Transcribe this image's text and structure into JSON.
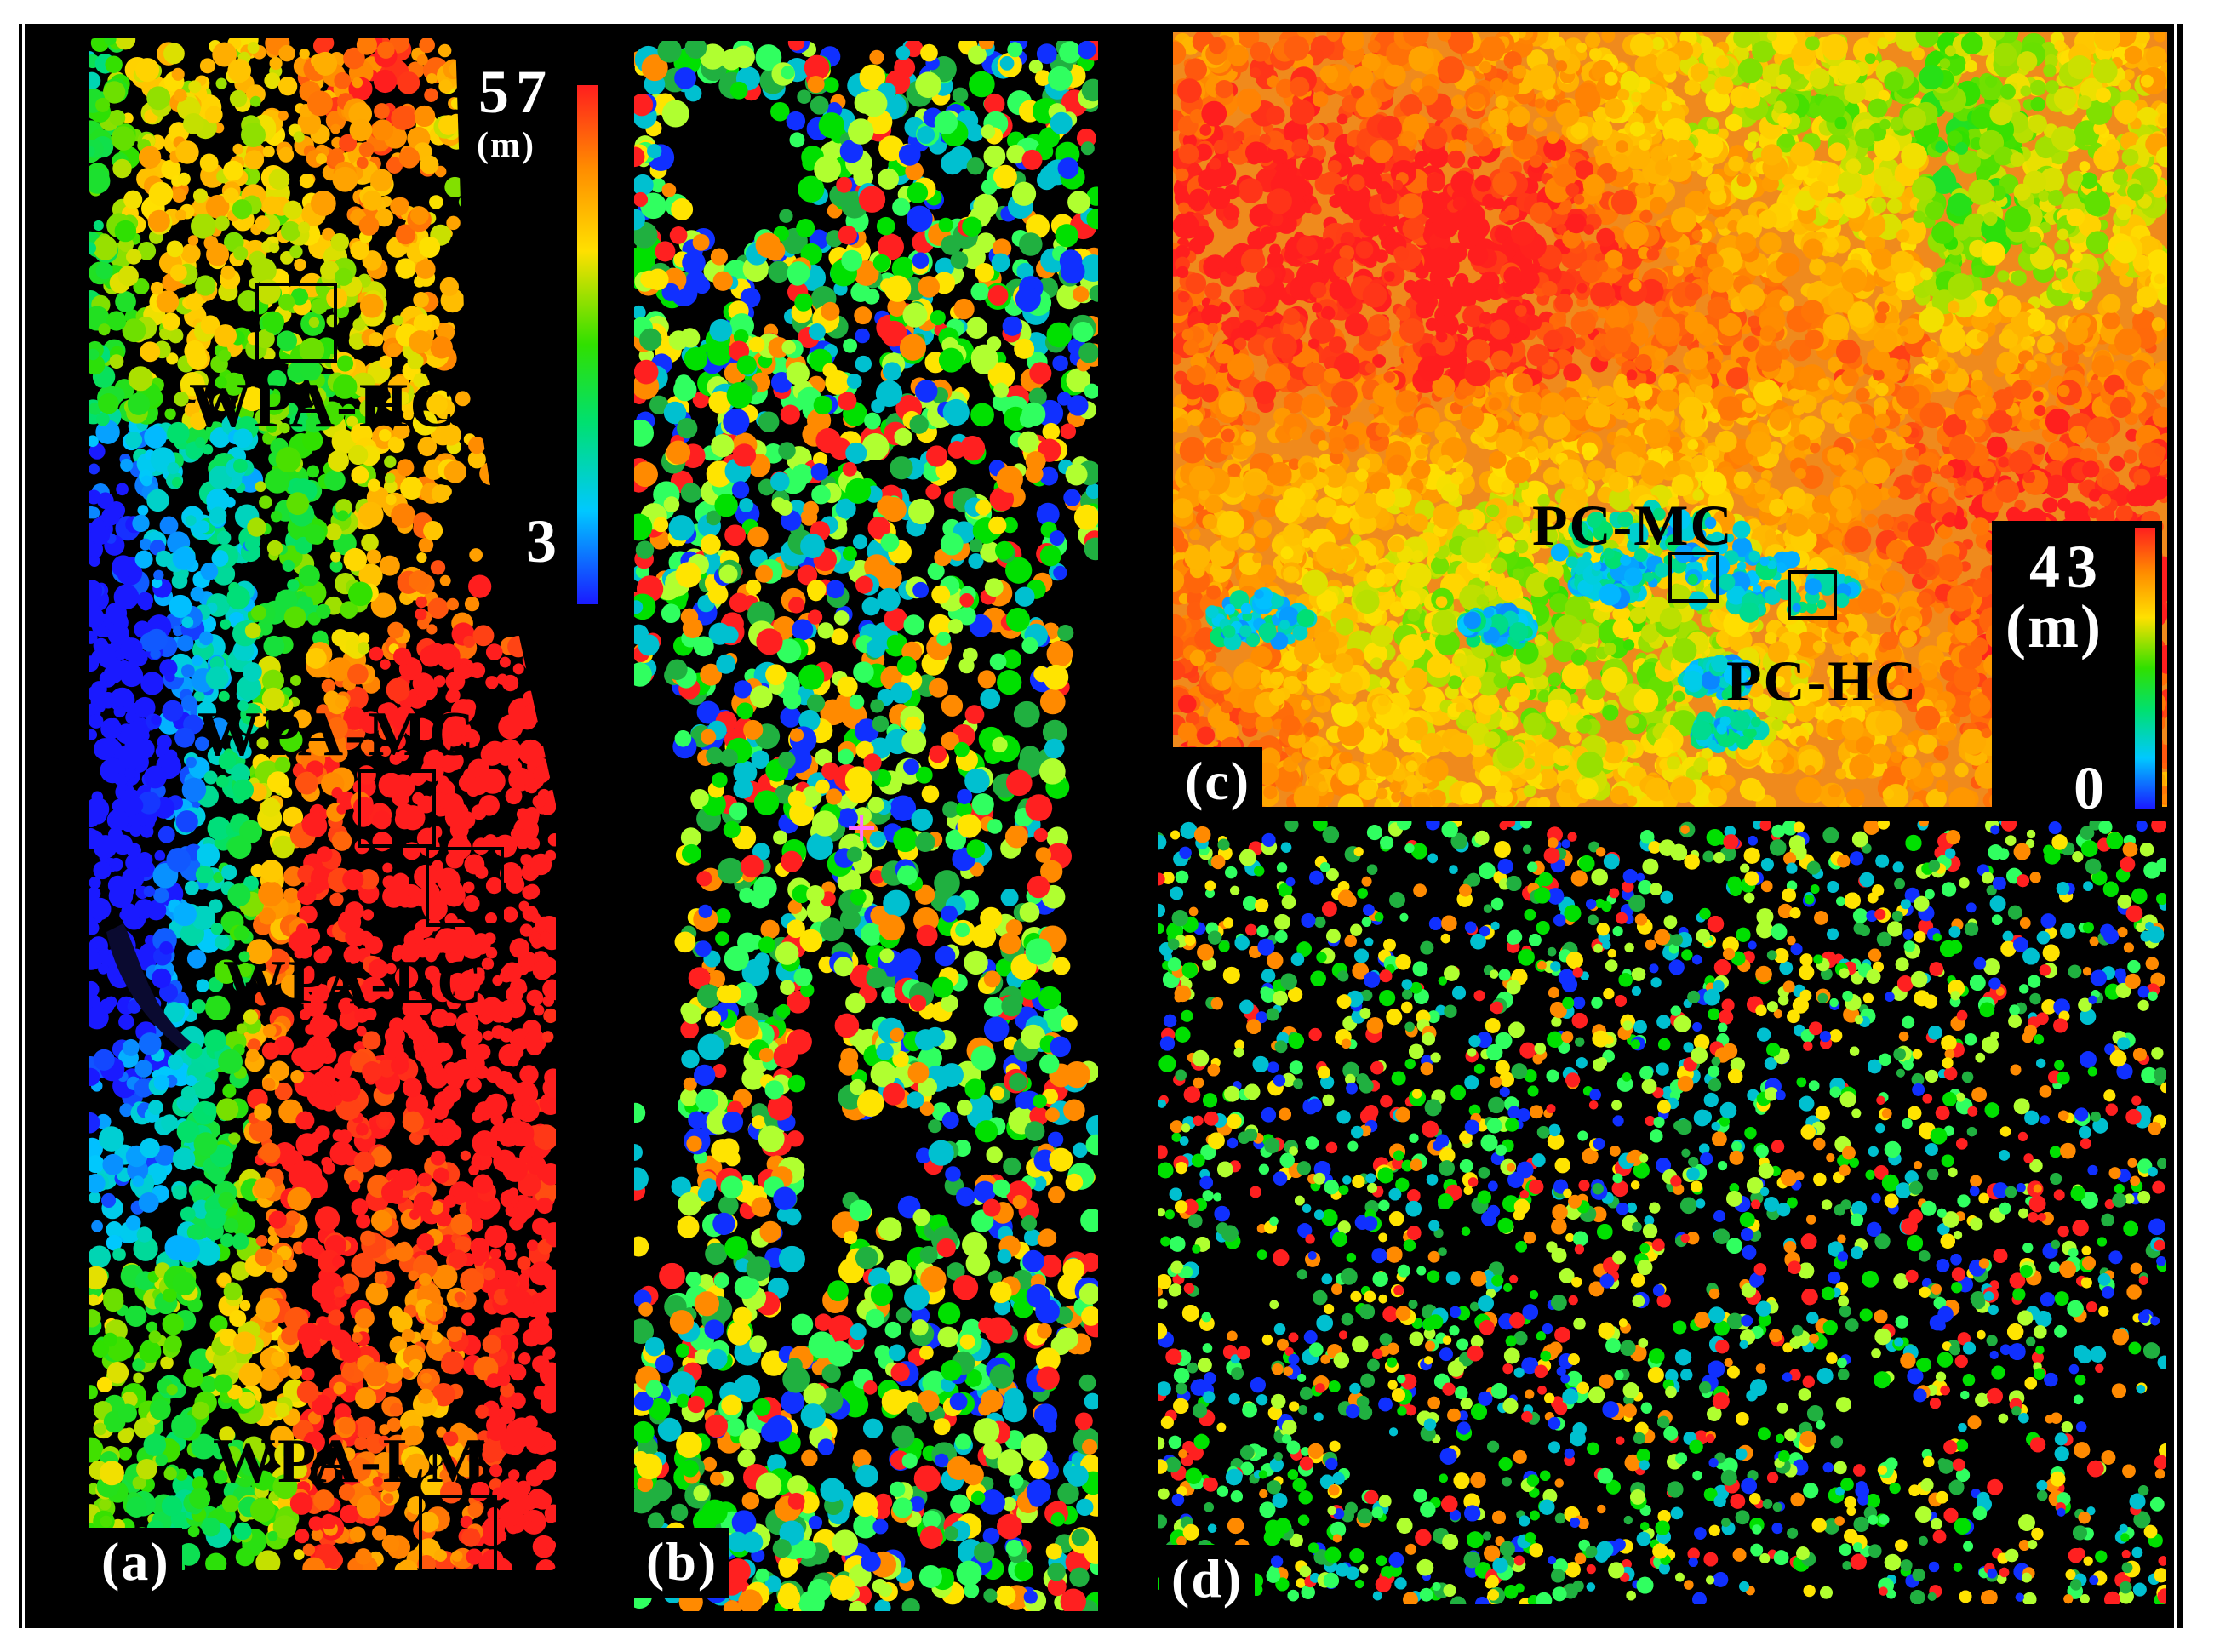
{
  "panels": [
    {
      "id": "a",
      "label": "(a)",
      "kind": "canopy-height-model"
    },
    {
      "id": "b",
      "label": "(b)",
      "kind": "segmented-tree-crowns"
    },
    {
      "id": "c",
      "label": "(c)",
      "kind": "canopy-height-model"
    },
    {
      "id": "d",
      "label": "(d)",
      "kind": "segmented-tree-crowns"
    }
  ],
  "regions": {
    "wpa_hc": "WPA-HC",
    "wpa_mc": "WPA-MC",
    "wpa_lc": "WPA-LC",
    "wpa_lm": "WPA-LM",
    "pc_mc": "PC-MC",
    "pc_hc": "PC-HC"
  },
  "colorbar_a": {
    "max": "57",
    "unit": "(m)",
    "min": "3"
  },
  "colorbar_c": {
    "max": "43",
    "unit": "(m)",
    "min": "0"
  },
  "colorbar_colors": [
    "#1a1aff",
    "#00c8ff",
    "#00e070",
    "#30e000",
    "#ffe000",
    "#ff8c00",
    "#ff1e1e"
  ],
  "segment_colors": [
    "#ff2020",
    "#00e000",
    "#1030ff",
    "#ff8a00",
    "#ffe400",
    "#20b040",
    "#00c0d0",
    "#b0ff30",
    "#30ff60"
  ],
  "background_color": "#000000"
}
